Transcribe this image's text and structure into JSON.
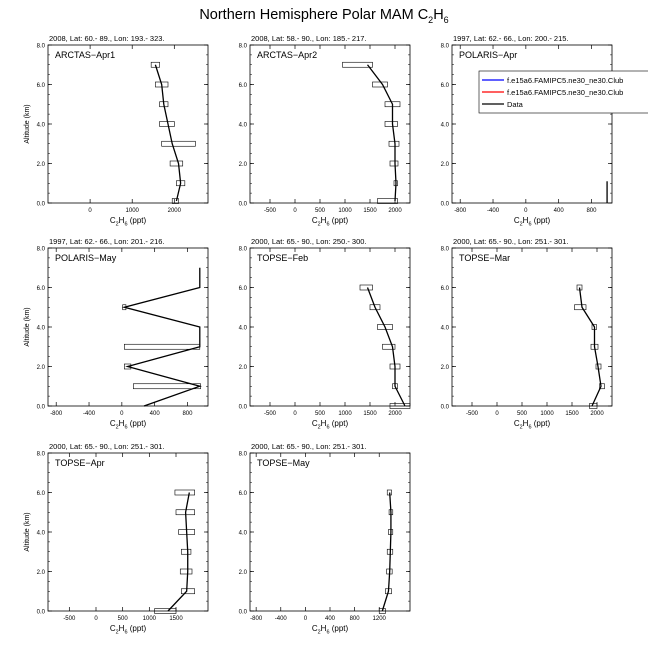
{
  "title": {
    "text": "Northern Hemisphere Polar MAM C",
    "sub": "2",
    "text2": "H",
    "sub2": "6"
  },
  "xlabel": {
    "a": "C",
    "s1": "2",
    "b": "H",
    "s2": "6",
    "c": " (ppt)"
  },
  "ylabel": "Altitude (km)",
  "legend": {
    "entries": [
      {
        "label": "f.e15a6.FAMIPC5.ne30_ne30.Club",
        "color": "#0000ff"
      },
      {
        "label": "f.e15a6.FAMIPC5.ne30_ne30.Club",
        "color": "#ff0000"
      },
      {
        "label": "Data",
        "color": "#000000"
      }
    ]
  },
  "chart_data": [
    {
      "type": "line",
      "header": "2008, Lat:  60.- 89., Lon: 193.- 323.",
      "campaign": "ARCTAS−Apr1",
      "xlim": [
        -1000,
        2800
      ],
      "ylim": [
        0,
        8
      ],
      "xticks": [
        0,
        1000,
        2000
      ],
      "xticklabels": [
        "0",
        "1000",
        "2000"
      ],
      "yticks": [
        0,
        2,
        4,
        6,
        8
      ],
      "yticklabels": [
        "0.0",
        "2.0",
        "4.0",
        "6.0",
        "8.0"
      ],
      "series": [
        {
          "name": "Data",
          "alt": [
            0.1,
            1,
            2,
            3,
            4,
            5,
            6,
            7
          ],
          "median": [
            2050,
            2150,
            2100,
            1950,
            1850,
            1750,
            1700,
            1550
          ],
          "xlo": [
            1950,
            2050,
            1900,
            1700,
            1650,
            1650,
            1550,
            1450
          ],
          "xhi": [
            2100,
            2250,
            2200,
            2500,
            2000,
            1850,
            1850,
            1650
          ]
        }
      ]
    },
    {
      "type": "line",
      "header": "2008, Lat:  58.- 90., Lon: 185.- 217.",
      "campaign": "ARCTAS−Apr2",
      "xlim": [
        -900,
        2300
      ],
      "ylim": [
        0,
        8
      ],
      "xticks": [
        -500,
        0,
        500,
        1000,
        1500,
        2000
      ],
      "xticklabels": [
        "-500",
        "0",
        "500",
        "1000",
        "1500",
        "2000"
      ],
      "yticks": [
        0,
        2,
        4,
        6,
        8
      ],
      "yticklabels": [
        "0.0",
        "2.0",
        "4.0",
        "6.0",
        "8.0"
      ],
      "series": [
        {
          "name": "Data",
          "alt": [
            0.1,
            1,
            2,
            3,
            4,
            5,
            6,
            7
          ],
          "median": [
            2000,
            2020,
            2000,
            2000,
            1950,
            1950,
            1750,
            1450
          ],
          "xlo": [
            1650,
            1980,
            1900,
            1880,
            1800,
            1800,
            1550,
            950
          ],
          "xhi": [
            2050,
            2050,
            2060,
            2080,
            2050,
            2100,
            1850,
            1550
          ]
        }
      ]
    },
    {
      "type": "line",
      "header": "1997, Lat:  62.- 66., Lon: 200.- 215.",
      "campaign": "POLARIS−Apr",
      "xlim": [
        -900,
        1050
      ],
      "ylim": [
        0,
        8
      ],
      "xticks": [
        -800,
        -400,
        0,
        400,
        800
      ],
      "xticklabels": [
        "-800",
        "-400",
        "0",
        "400",
        "800"
      ],
      "yticks": [
        0,
        2,
        4,
        6,
        8
      ],
      "yticklabels": [
        "0.0",
        "2.0",
        "4.0",
        "6.0",
        "8.0"
      ],
      "series": [
        {
          "name": "Data",
          "alt": [
            0,
            1.1
          ],
          "median": [
            990,
            990
          ],
          "xlo": [],
          "xhi": []
        }
      ]
    },
    {
      "type": "line",
      "header": "1997, Lat:  62.- 66., Lon: 201.- 216.",
      "campaign": "POLARIS−May",
      "xlim": [
        -900,
        1050
      ],
      "ylim": [
        0,
        8
      ],
      "xticks": [
        -800,
        -400,
        0,
        400,
        800
      ],
      "xticklabels": [
        "-800",
        "-400",
        "0",
        "400",
        "800"
      ],
      "yticks": [
        0,
        2,
        4,
        6,
        8
      ],
      "yticklabels": [
        "0.0",
        "2.0",
        "4.0",
        "6.0",
        "8.0"
      ],
      "series": [
        {
          "name": "Data",
          "alt": [
            0,
            1,
            2,
            3,
            4,
            5,
            6,
            7
          ],
          "median": [
            270,
            950,
            70,
            950,
            950,
            30,
            950,
            950
          ],
          "xlo": [],
          "xhi": [],
          "boxes": [
            {
              "alt": 1,
              "xlo": 140,
              "xhi": 960
            },
            {
              "alt": 2,
              "xlo": 30,
              "xhi": 110
            },
            {
              "alt": 3,
              "xlo": 30,
              "xhi": 950
            },
            {
              "alt": 5,
              "xlo": 10,
              "xhi": 50
            }
          ]
        }
      ]
    },
    {
      "type": "line",
      "header": "2000, Lat:  65.- 90., Lon: 250.- 300.",
      "campaign": "TOPSE−Feb",
      "xlim": [
        -900,
        2300
      ],
      "ylim": [
        0,
        8
      ],
      "xticks": [
        -500,
        0,
        500,
        1000,
        1500,
        2000
      ],
      "xticklabels": [
        "-500",
        "0",
        "500",
        "1000",
        "1500",
        "2000"
      ],
      "yticks": [
        0,
        2,
        4,
        6,
        8
      ],
      "yticklabels": [
        "0.0",
        "2.0",
        "4.0",
        "6.0",
        "8.0"
      ],
      "series": [
        {
          "name": "Data",
          "alt": [
            0,
            1,
            2,
            3,
            4,
            5,
            6
          ],
          "median": [
            2200,
            2000,
            2000,
            1950,
            1800,
            1600,
            1450
          ],
          "xlo": [
            1900,
            1950,
            1900,
            1750,
            1650,
            1500,
            1300
          ],
          "xhi": [
            2300,
            2050,
            2100,
            2000,
            1950,
            1700,
            1550
          ]
        }
      ]
    },
    {
      "type": "line",
      "header": "2000, Lat:  65.- 90., Lon: 251.- 301.",
      "campaign": "TOPSE−Mar",
      "xlim": [
        -900,
        2300
      ],
      "ylim": [
        0,
        8
      ],
      "xticks": [
        -500,
        0,
        500,
        1000,
        1500,
        2000
      ],
      "xticklabels": [
        "-500",
        "0",
        "500",
        "1000",
        "1500",
        "2000"
      ],
      "yticks": [
        0,
        2,
        4,
        6,
        8
      ],
      "yticklabels": [
        "0.0",
        "2.0",
        "4.0",
        "6.0",
        "8.0"
      ],
      "series": [
        {
          "name": "Data",
          "alt": [
            0,
            1,
            2,
            3,
            4,
            5,
            6
          ],
          "median": [
            1900,
            2080,
            2020,
            1950,
            1950,
            1700,
            1650
          ],
          "xlo": [
            1850,
            2050,
            1980,
            1880,
            1900,
            1550,
            1600
          ],
          "xhi": [
            2000,
            2150,
            2080,
            2020,
            1990,
            1780,
            1700
          ]
        }
      ]
    },
    {
      "type": "line",
      "header": "2000, Lat:  65.- 90., Lon: 251.- 301.",
      "campaign": "TOPSE−Apr",
      "xlim": [
        -900,
        2100
      ],
      "ylim": [
        0,
        8
      ],
      "xticks": [
        -500,
        0,
        500,
        1000,
        1500
      ],
      "xticklabels": [
        "-500",
        "0",
        "500",
        "1000",
        "1500"
      ],
      "yticks": [
        0,
        2,
        4,
        6,
        8
      ],
      "yticklabels": [
        "0.0",
        "2.0",
        "4.0",
        "6.0",
        "8.0"
      ],
      "series": [
        {
          "name": "Data",
          "alt": [
            0,
            1,
            2,
            3,
            4,
            5,
            6
          ],
          "median": [
            1350,
            1700,
            1720,
            1720,
            1700,
            1680,
            1750
          ],
          "xlo": [
            1100,
            1600,
            1580,
            1600,
            1550,
            1500,
            1480
          ],
          "xhi": [
            1500,
            1850,
            1800,
            1780,
            1850,
            1850,
            1850
          ]
        }
      ]
    },
    {
      "type": "line",
      "header": "2000, Lat:  65.- 90., Lon: 251.- 301.",
      "campaign": "TOPSE−May",
      "xlim": [
        -900,
        1700
      ],
      "ylim": [
        0,
        8
      ],
      "xticks": [
        -800,
        -400,
        0,
        400,
        800,
        1200
      ],
      "xticklabels": [
        "-800",
        "-400",
        "0",
        "400",
        "800",
        "1200"
      ],
      "yticks": [
        0,
        2,
        4,
        6,
        8
      ],
      "yticklabels": [
        "0.0",
        "2.0",
        "4.0",
        "6.0",
        "8.0"
      ],
      "series": [
        {
          "name": "Data",
          "alt": [
            0,
            1,
            2,
            3,
            4,
            5,
            6
          ],
          "median": [
            1250,
            1350,
            1370,
            1380,
            1390,
            1390,
            1370
          ],
          "xlo": [
            1200,
            1300,
            1320,
            1330,
            1350,
            1360,
            1330
          ],
          "xhi": [
            1300,
            1400,
            1410,
            1420,
            1420,
            1420,
            1400
          ]
        }
      ]
    }
  ]
}
